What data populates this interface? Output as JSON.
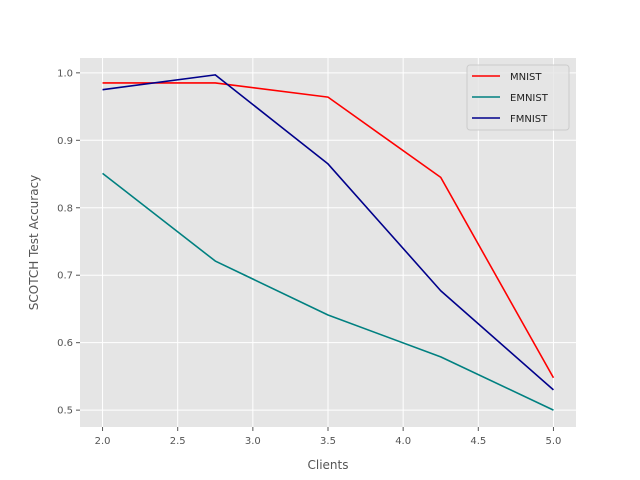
{
  "chart_data": {
    "type": "line",
    "title": "",
    "xlabel": "Clients",
    "ylabel": "SCOTCH Test Accuracy",
    "xlim": [
      1.85,
      5.15
    ],
    "ylim": [
      0.475,
      1.022
    ],
    "xticks": [
      2.0,
      2.5,
      3.0,
      3.5,
      4.0,
      4.5,
      5.0
    ],
    "xtick_labels": [
      "2.0",
      "2.5",
      "3.0",
      "3.5",
      "4.0",
      "4.5",
      "5.0"
    ],
    "yticks": [
      0.5,
      0.6,
      0.7,
      0.8,
      0.9,
      1.0
    ],
    "ytick_labels": [
      "0.5",
      "0.6",
      "0.7",
      "0.8",
      "0.9",
      "1.0"
    ],
    "grid": true,
    "legend_position": "top-right",
    "series": [
      {
        "name": "MNIST",
        "color": "#ff0000",
        "x": [
          2.0,
          2.75,
          3.5,
          4.25,
          5.0
        ],
        "y": [
          0.985,
          0.985,
          0.964,
          0.845,
          0.548
        ]
      },
      {
        "name": "EMNIST",
        "color": "#008080",
        "x": [
          2.0,
          2.75,
          3.5,
          4.25,
          5.0
        ],
        "y": [
          0.851,
          0.721,
          0.641,
          0.579,
          0.5
        ]
      },
      {
        "name": "FMNIST",
        "color": "#00008b",
        "x": [
          2.0,
          2.75,
          3.5,
          4.25,
          5.0
        ],
        "y": [
          0.975,
          0.997,
          0.865,
          0.677,
          0.53
        ]
      }
    ]
  }
}
